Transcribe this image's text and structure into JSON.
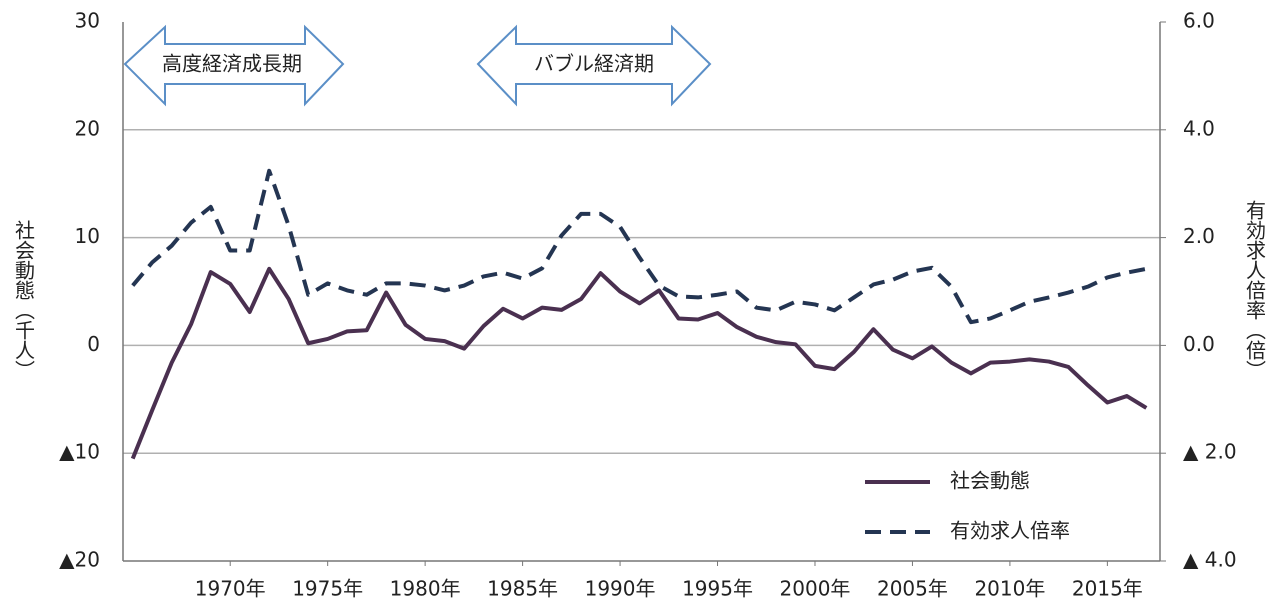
{
  "chart_data": {
    "type": "line",
    "annotations": [
      "高度経済成長期",
      "バブル経済期"
    ],
    "ylabel": "社会動態（千人）",
    "y2label": "有効求人倍率（倍）",
    "x": [
      1965,
      1966,
      1967,
      1968,
      1969,
      1970,
      1971,
      1972,
      1973,
      1974,
      1975,
      1976,
      1977,
      1978,
      1979,
      1980,
      1981,
      1982,
      1983,
      1984,
      1985,
      1986,
      1987,
      1988,
      1989,
      1990,
      1991,
      1992,
      1993,
      1994,
      1995,
      1996,
      1997,
      1998,
      1999,
      2000,
      2001,
      2002,
      2003,
      2004,
      2005,
      2006,
      2007,
      2008,
      2009,
      2010,
      2011,
      2012,
      2013,
      2014,
      2015,
      2016,
      2017
    ],
    "xlim": [
      1964.5,
      2017.7
    ],
    "xticks": [
      {
        "value": 1970,
        "label": "1970年"
      },
      {
        "value": 1975,
        "label": "1975年"
      },
      {
        "value": 1980,
        "label": "1980年"
      },
      {
        "value": 1985,
        "label": "1985年"
      },
      {
        "value": 1990,
        "label": "1990年"
      },
      {
        "value": 1995,
        "label": "1995年"
      },
      {
        "value": 2000,
        "label": "2000年"
      },
      {
        "value": 2005,
        "label": "2005年"
      },
      {
        "value": 2010,
        "label": "2010年"
      },
      {
        "value": 2015,
        "label": "2015年"
      }
    ],
    "ylim": [
      -20,
      30
    ],
    "yticks": [
      30,
      20,
      10,
      0,
      {
        "value": -10,
        "label": "▲10"
      },
      {
        "value": -20,
        "label": "▲20"
      }
    ],
    "y2lim": [
      -4,
      6
    ],
    "y2ticks": [
      {
        "value": 6,
        "label": "6.0"
      },
      {
        "value": 4,
        "label": "4.0"
      },
      {
        "value": 2,
        "label": "2.0"
      },
      {
        "value": 0,
        "label": "0.0"
      },
      {
        "value": -2,
        "label": "▲ 2.0"
      },
      {
        "value": -4,
        "label": "▲ 4.0"
      }
    ],
    "grid": true,
    "legend": "lower right",
    "series": [
      {
        "name": "社会動態",
        "color": "#4a3050",
        "dash": false,
        "values": [
          -10.5,
          -6,
          -1.6,
          2.0,
          6.8,
          5.7,
          3.1,
          7.1,
          4.3,
          0.2,
          0.6,
          1.3,
          1.4,
          4.9,
          1.9,
          0.6,
          0.4,
          -0.3,
          1.8,
          3.4,
          2.5,
          3.5,
          3.3,
          4.3,
          6.7,
          5.0,
          3.9,
          5.1,
          2.5,
          2.4,
          3.0,
          1.7,
          0.8,
          0.3,
          0.1,
          -1.9,
          -2.2,
          -0.6,
          1.5,
          -0.4,
          -1.2,
          -0.1,
          -1.6,
          -2.6,
          -1.6,
          -1.5,
          -1.3,
          -1.5,
          -2.0,
          -3.7,
          -5.3,
          -4.7,
          -5.8
        ]
      },
      {
        "name": "有効求人倍率",
        "color": "#243552",
        "dash": true,
        "axis": "y2",
        "values": [
          1.11,
          1.54,
          1.85,
          2.28,
          2.57,
          1.76,
          1.76,
          3.24,
          2.22,
          0.94,
          1.15,
          1.02,
          0.94,
          1.15,
          1.15,
          1.11,
          1.02,
          1.11,
          1.28,
          1.35,
          1.24,
          1.43,
          2.04,
          2.44,
          2.44,
          2.2,
          1.63,
          1.11,
          0.91,
          0.89,
          0.94,
          1.0,
          0.7,
          0.65,
          0.81,
          0.76,
          0.65,
          0.89,
          1.13,
          1.22,
          1.37,
          1.44,
          1.09,
          0.43,
          0.5,
          0.65,
          0.81,
          0.89,
          0.98,
          1.09,
          1.26,
          1.35,
          1.42
        ]
      }
    ]
  }
}
